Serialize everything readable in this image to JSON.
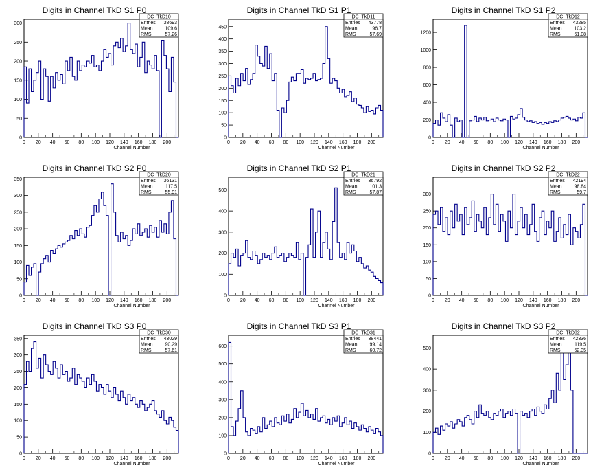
{
  "chart_data": [
    {
      "type": "histogram",
      "title": "Digits in Channel TkD S1 P0",
      "xlabel": "Channel Number",
      "xlim": [
        0,
        216
      ],
      "ylim": [
        0,
        310
      ],
      "yticks": [
        0,
        50,
        100,
        150,
        200,
        250,
        300
      ],
      "stats": {
        "name": "DC_TkD10",
        "entries": "38693",
        "mean": "109.6",
        "rms": "57.26"
      },
      "values": [
        185,
        90,
        180,
        120,
        150,
        170,
        200,
        100,
        180,
        160,
        95,
        160,
        130,
        170,
        150,
        165,
        140,
        200,
        175,
        210,
        160,
        150,
        200,
        175,
        190,
        185,
        200,
        195,
        215,
        185,
        190,
        175,
        200,
        230,
        210,
        220,
        190,
        240,
        250,
        235,
        260,
        225,
        240,
        300,
        230,
        220,
        245,
        185,
        210,
        250,
        170,
        200,
        190,
        180,
        215,
        175,
        0,
        255,
        215,
        180,
        120,
        210,
        145,
        0
      ],
      "color": "#00008b"
    },
    {
      "type": "histogram",
      "title": "Digits in Channel TkD S1 P1",
      "xlabel": "Channel Number",
      "xlim": [
        0,
        216
      ],
      "ylim": [
        0,
        480
      ],
      "yticks": [
        0,
        50,
        100,
        150,
        200,
        250,
        300,
        350,
        400,
        450
      ],
      "stats": {
        "name": "DC_TkD11",
        "entries": "43778",
        "mean": "96.7",
        "rms": "57.69"
      },
      "values": [
        250,
        210,
        180,
        240,
        210,
        260,
        230,
        280,
        215,
        235,
        260,
        375,
        330,
        300,
        290,
        370,
        280,
        340,
        230,
        260,
        110,
        0,
        120,
        100,
        150,
        225,
        245,
        230,
        260,
        260,
        275,
        220,
        240,
        235,
        240,
        260,
        230,
        235,
        240,
        300,
        450,
        320,
        220,
        240,
        230,
        200,
        180,
        195,
        165,
        170,
        185,
        145,
        160,
        135,
        130,
        120,
        100,
        125,
        105,
        110,
        95,
        120,
        130,
        110
      ],
      "color": "#00008b"
    },
    {
      "type": "histogram",
      "title": "Digits in Channel TkD S1 P2",
      "xlabel": "Channel Number",
      "xlim": [
        0,
        216
      ],
      "ylim": [
        0,
        1350
      ],
      "yticks": [
        0,
        200,
        400,
        600,
        800,
        1000,
        1200
      ],
      "stats": {
        "name": "DC_TkD12",
        "entries": "43285",
        "mean": "103.2",
        "rms": "61.08"
      },
      "values": [
        160,
        200,
        140,
        280,
        220,
        180,
        260,
        140,
        0,
        220,
        180,
        200,
        0,
        1280,
        0,
        190,
        200,
        240,
        180,
        220,
        200,
        230,
        190,
        200,
        210,
        180,
        220,
        200,
        190,
        210,
        200,
        0,
        240,
        210,
        220,
        260,
        330,
        230,
        200,
        180,
        190,
        170,
        180,
        160,
        170,
        150,
        170,
        160,
        180,
        170,
        190,
        180,
        200,
        220,
        230,
        240,
        220,
        200,
        210,
        190,
        230,
        220,
        280,
        0
      ],
      "color": "#00008b"
    },
    {
      "type": "histogram",
      "title": "Digits in Channel TkD S2 P0",
      "xlabel": "Channel Number",
      "xlim": [
        0,
        216
      ],
      "ylim": [
        0,
        355
      ],
      "yticks": [
        0,
        50,
        100,
        150,
        200,
        250,
        300,
        350
      ],
      "stats": {
        "name": "DC_TkD20",
        "entries": "36131",
        "mean": "117.5",
        "rms": "55.91"
      },
      "values": [
        40,
        90,
        60,
        85,
        95,
        0,
        70,
        95,
        110,
        120,
        100,
        135,
        125,
        140,
        150,
        145,
        155,
        160,
        165,
        180,
        170,
        195,
        180,
        200,
        185,
        175,
        205,
        210,
        240,
        270,
        250,
        290,
        310,
        270,
        240,
        0,
        335,
        250,
        180,
        160,
        190,
        170,
        180,
        150,
        165,
        200,
        185,
        215,
        180,
        190,
        200,
        175,
        210,
        190,
        205,
        175,
        225,
        190,
        215,
        185,
        250,
        285,
        170,
        0
      ],
      "color": "#00008b"
    },
    {
      "type": "histogram",
      "title": "Digits in Channel TkD S2 P1",
      "xlabel": "Channel Number",
      "xlim": [
        0,
        216
      ],
      "ylim": [
        0,
        560
      ],
      "yticks": [
        0,
        100,
        200,
        300,
        400,
        500
      ],
      "stats": {
        "name": "DC_TkD21",
        "entries": "36792",
        "mean": "101.3",
        "rms": "57.87"
      },
      "values": [
        150,
        200,
        180,
        220,
        140,
        190,
        200,
        260,
        180,
        170,
        210,
        190,
        150,
        170,
        200,
        180,
        190,
        170,
        200,
        230,
        180,
        190,
        200,
        160,
        180,
        200,
        190,
        180,
        250,
        170,
        200,
        0,
        180,
        240,
        410,
        180,
        300,
        400,
        180,
        250,
        300,
        220,
        170,
        350,
        510,
        250,
        180,
        200,
        170,
        250,
        200,
        240,
        210,
        160,
        180,
        150,
        130,
        140,
        120,
        110,
        90,
        80,
        70,
        60
      ],
      "color": "#00008b"
    },
    {
      "type": "histogram",
      "title": "Digits in Channel TkD S2 P2",
      "xlabel": "Channel Number",
      "xlim": [
        0,
        216
      ],
      "ylim": [
        0,
        350
      ],
      "yticks": [
        0,
        50,
        100,
        150,
        200,
        250,
        300
      ],
      "stats": {
        "name": "DC_TkD22",
        "entries": "42194",
        "mean": "98.84",
        "rms": "59.7"
      },
      "values": [
        240,
        250,
        210,
        260,
        190,
        230,
        180,
        250,
        200,
        270,
        220,
        240,
        180,
        260,
        210,
        230,
        280,
        190,
        240,
        220,
        200,
        260,
        180,
        230,
        300,
        210,
        270,
        190,
        240,
        220,
        160,
        250,
        200,
        300,
        180,
        220,
        260,
        200,
        240,
        180,
        210,
        270,
        190,
        160,
        230,
        250,
        180,
        220,
        200,
        250,
        160,
        190,
        230,
        170,
        210,
        180,
        240,
        150,
        200,
        190,
        170,
        210,
        270,
        0
      ],
      "color": "#00008b"
    },
    {
      "type": "histogram",
      "title": "Digits in Channel TkD S3 P0",
      "xlabel": "Channel Number",
      "xlim": [
        0,
        216
      ],
      "ylim": [
        0,
        360
      ],
      "yticks": [
        0,
        50,
        100,
        150,
        200,
        250,
        300,
        350
      ],
      "stats": {
        "name": "DC_TkD30",
        "entries": "43029",
        "mean": "90.29",
        "rms": "57.61"
      },
      "values": [
        210,
        280,
        250,
        320,
        340,
        260,
        290,
        230,
        300,
        270,
        250,
        240,
        280,
        260,
        230,
        270,
        240,
        250,
        220,
        230,
        260,
        210,
        240,
        230,
        220,
        200,
        230,
        210,
        240,
        220,
        190,
        210,
        200,
        180,
        210,
        190,
        170,
        200,
        180,
        160,
        190,
        170,
        150,
        180,
        160,
        170,
        150,
        140,
        160,
        150,
        130,
        140,
        150,
        160,
        130,
        120,
        110,
        130,
        100,
        90,
        110,
        100,
        80,
        70
      ],
      "color": "#00008b"
    },
    {
      "type": "histogram",
      "title": "Digits in Channel TkD S3 P1",
      "xlabel": "Channel Number",
      "xlim": [
        0,
        216
      ],
      "ylim": [
        0,
        660
      ],
      "yticks": [
        0,
        100,
        200,
        300,
        400,
        500,
        600
      ],
      "stats": {
        "name": "DC_TkD31",
        "entries": "38441",
        "mean": "99.14",
        "rms": "60.72"
      },
      "values": [
        620,
        150,
        100,
        180,
        250,
        350,
        200,
        120,
        100,
        140,
        130,
        110,
        150,
        120,
        200,
        140,
        160,
        180,
        150,
        200,
        170,
        160,
        210,
        180,
        220,
        170,
        190,
        250,
        200,
        230,
        280,
        210,
        240,
        200,
        220,
        190,
        250,
        180,
        200,
        210,
        170,
        190,
        160,
        200,
        180,
        210,
        150,
        170,
        200,
        160,
        180,
        140,
        170,
        150,
        130,
        160,
        140,
        120,
        150,
        130,
        110,
        140,
        120,
        100
      ],
      "color": "#00008b"
    },
    {
      "type": "histogram",
      "title": "Digits in Channel TkD S3 P2",
      "xlabel": "Channel Number",
      "xlim": [
        0,
        216
      ],
      "ylim": [
        0,
        560
      ],
      "yticks": [
        0,
        100,
        200,
        300,
        400,
        500
      ],
      "stats": {
        "name": "DC_TkD32",
        "entries": "42336",
        "mean": "119.5",
        "rms": "62.35"
      },
      "values": [
        100,
        120,
        90,
        130,
        110,
        140,
        130,
        150,
        120,
        140,
        160,
        150,
        130,
        170,
        180,
        160,
        140,
        200,
        170,
        230,
        190,
        180,
        200,
        170,
        160,
        190,
        180,
        200,
        210,
        170,
        190,
        200,
        180,
        210,
        190,
        0,
        200,
        180,
        190,
        170,
        200,
        210,
        180,
        220,
        200,
        190,
        230,
        210,
        260,
        300,
        240,
        380,
        300,
        480,
        350,
        420,
        510,
        300,
        0,
        0,
        0,
        0,
        0,
        0
      ],
      "color": "#00008b"
    }
  ]
}
